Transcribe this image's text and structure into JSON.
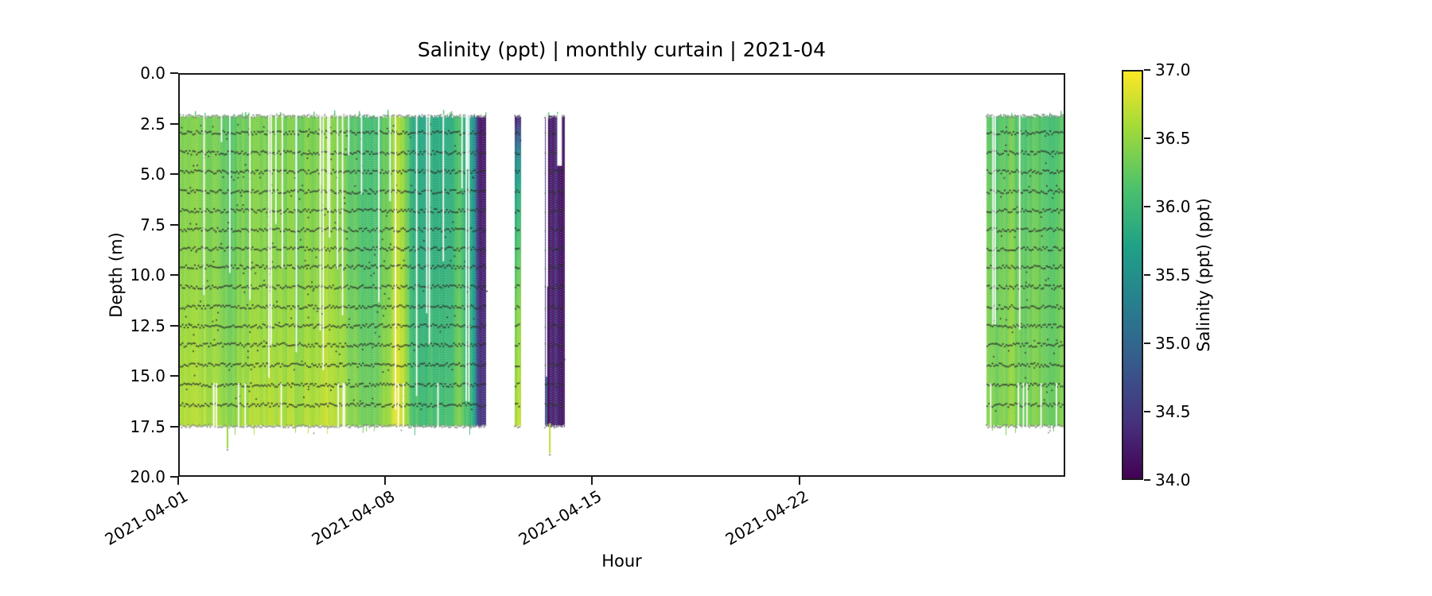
{
  "chart_data": {
    "type": "heatmap",
    "title": "Salinity (ppt) | monthly curtain | 2021-04",
    "xlabel": "Hour",
    "ylabel": "Depth (m)",
    "x_axis": {
      "start_date": "2021-04-01",
      "range_days": [
        0,
        30
      ],
      "tick_days": [
        0,
        7,
        14,
        21
      ],
      "tick_labels": [
        "2021-04-01",
        "2021-04-08",
        "2021-04-15",
        "2021-04-22"
      ]
    },
    "y_axis": {
      "range": [
        0.0,
        20.0
      ],
      "inverted": true,
      "tick_values": [
        0.0,
        2.5,
        5.0,
        7.5,
        10.0,
        12.5,
        15.0,
        17.5,
        20.0
      ],
      "tick_labels": [
        "0.0",
        "2.5",
        "5.0",
        "7.5",
        "10.0",
        "12.5",
        "15.0",
        "17.5",
        "20.0"
      ]
    },
    "colorbar": {
      "label": "Salinity (ppt) (ppt)",
      "vmin": 34.0,
      "vmax": 37.0,
      "colormap": "viridis",
      "tick_values": [
        37.0,
        36.5,
        36.0,
        35.5,
        35.0,
        34.5,
        34.0
      ],
      "tick_labels": [
        "37.0",
        "36.5",
        "36.0",
        "35.5",
        "35.0",
        "34.5",
        "34.0"
      ],
      "gradient_stops": [
        [
          "#440154",
          0.0
        ],
        [
          "#46327e",
          0.14
        ],
        [
          "#365c8d",
          0.29
        ],
        [
          "#277f8e",
          0.43
        ],
        [
          "#1fa187",
          0.57
        ],
        [
          "#4ac16d",
          0.71
        ],
        [
          "#a0da39",
          0.86
        ],
        [
          "#fde725",
          1.0
        ]
      ]
    },
    "curtain": {
      "depth_top_m": 2.08,
      "depth_bottom_m": 17.55,
      "sensor_line_depths_m": [
        2.9,
        3.9,
        4.85,
        5.85,
        6.8,
        7.75,
        8.7,
        9.6,
        10.6,
        11.6,
        12.55,
        13.5,
        14.5,
        15.5,
        16.5
      ],
      "boundary_line_depths_m": [
        2.08,
        17.55
      ],
      "blocks": [
        {
          "name": "block-apr01-apr11",
          "day_start": 0.01,
          "day_end": 10.4,
          "salinity_points": [
            [
              0,
              36.4
            ],
            [
              0.1,
              36.44
            ],
            [
              0.16,
              36.26
            ],
            [
              0.25,
              36.5
            ],
            [
              0.4,
              36.4
            ],
            [
              0.48,
              36.55
            ],
            [
              0.55,
              36.3
            ],
            [
              0.62,
              36.1
            ],
            [
              0.68,
              36.4
            ],
            [
              0.715,
              36.7
            ],
            [
              0.76,
              35.92
            ],
            [
              0.87,
              35.86
            ],
            [
              0.91,
              36.15
            ],
            [
              0.945,
              35.85
            ],
            [
              0.962,
              35.35
            ],
            [
              0.975,
              34.25
            ],
            [
              1,
              34.15
            ]
          ],
          "depth_deltas": [
            [
              2.1,
              -0.06
            ],
            [
              9,
              0.02
            ],
            [
              13,
              0.12
            ],
            [
              17.5,
              0.22
            ]
          ],
          "noise": 0.1,
          "gaps": 30,
          "bottom_gaps": 12,
          "seed": 11
        },
        {
          "name": "block-apr12",
          "day_start": 11.37,
          "day_end": 11.58,
          "salinity_points": [
            [
              0,
              36.0
            ],
            [
              0.5,
              36.05
            ],
            [
              1,
              36.0
            ]
          ],
          "depth_deltas": [
            [
              2.1,
              -1.7
            ],
            [
              4,
              -0.6
            ],
            [
              6,
              -0.15
            ],
            [
              9,
              0.2
            ],
            [
              12,
              0.45
            ],
            [
              17.5,
              0.7
            ]
          ],
          "noise": 0.14,
          "gaps": 0,
          "bottom_gaps": 0,
          "seed": 7
        },
        {
          "name": "block-apr13",
          "day_start": 12.39,
          "day_end": 13.07,
          "salinity_points": [
            [
              0,
              34.3
            ],
            [
              0.07,
              35.1
            ],
            [
              0.11,
              34.25
            ],
            [
              0.3,
              34.05
            ],
            [
              0.5,
              34.2
            ],
            [
              0.65,
              34.1
            ],
            [
              0.8,
              34.12
            ],
            [
              0.9,
              34.3
            ],
            [
              1,
              34.6
            ]
          ],
          "depth_deltas": [
            [
              2.1,
              0
            ],
            [
              17.5,
              0.05
            ]
          ],
          "noise": 0.22,
          "gaps": 2,
          "bottom_gaps": 0,
          "seed": 5
        },
        {
          "name": "block-apr28-apr30",
          "day_start": 27.38,
          "day_end": 30.0,
          "salinity_points": [
            [
              0,
              36.3
            ],
            [
              0.15,
              36.2
            ],
            [
              0.3,
              36.35
            ],
            [
              0.5,
              36.22
            ],
            [
              0.65,
              36.3
            ],
            [
              0.8,
              36.18
            ],
            [
              1,
              36.3
            ]
          ],
          "depth_deltas": [
            [
              2.1,
              -0.1
            ],
            [
              10,
              0.05
            ],
            [
              17.5,
              0.12
            ]
          ],
          "noise": 0.09,
          "gaps": 3,
          "bottom_gaps": 6,
          "seed": 3
        }
      ],
      "white_patches": [
        {
          "day_from": 12.81,
          "day_to": 12.97,
          "depth_from": 1.95,
          "depth_to": 4.55
        }
      ],
      "spikes": [
        {
          "day": 1.62,
          "depth_to": 18.65,
          "salinity": 36.55
        },
        {
          "day": 12.56,
          "depth_to": 18.9,
          "salinity": 36.7
        }
      ]
    }
  }
}
